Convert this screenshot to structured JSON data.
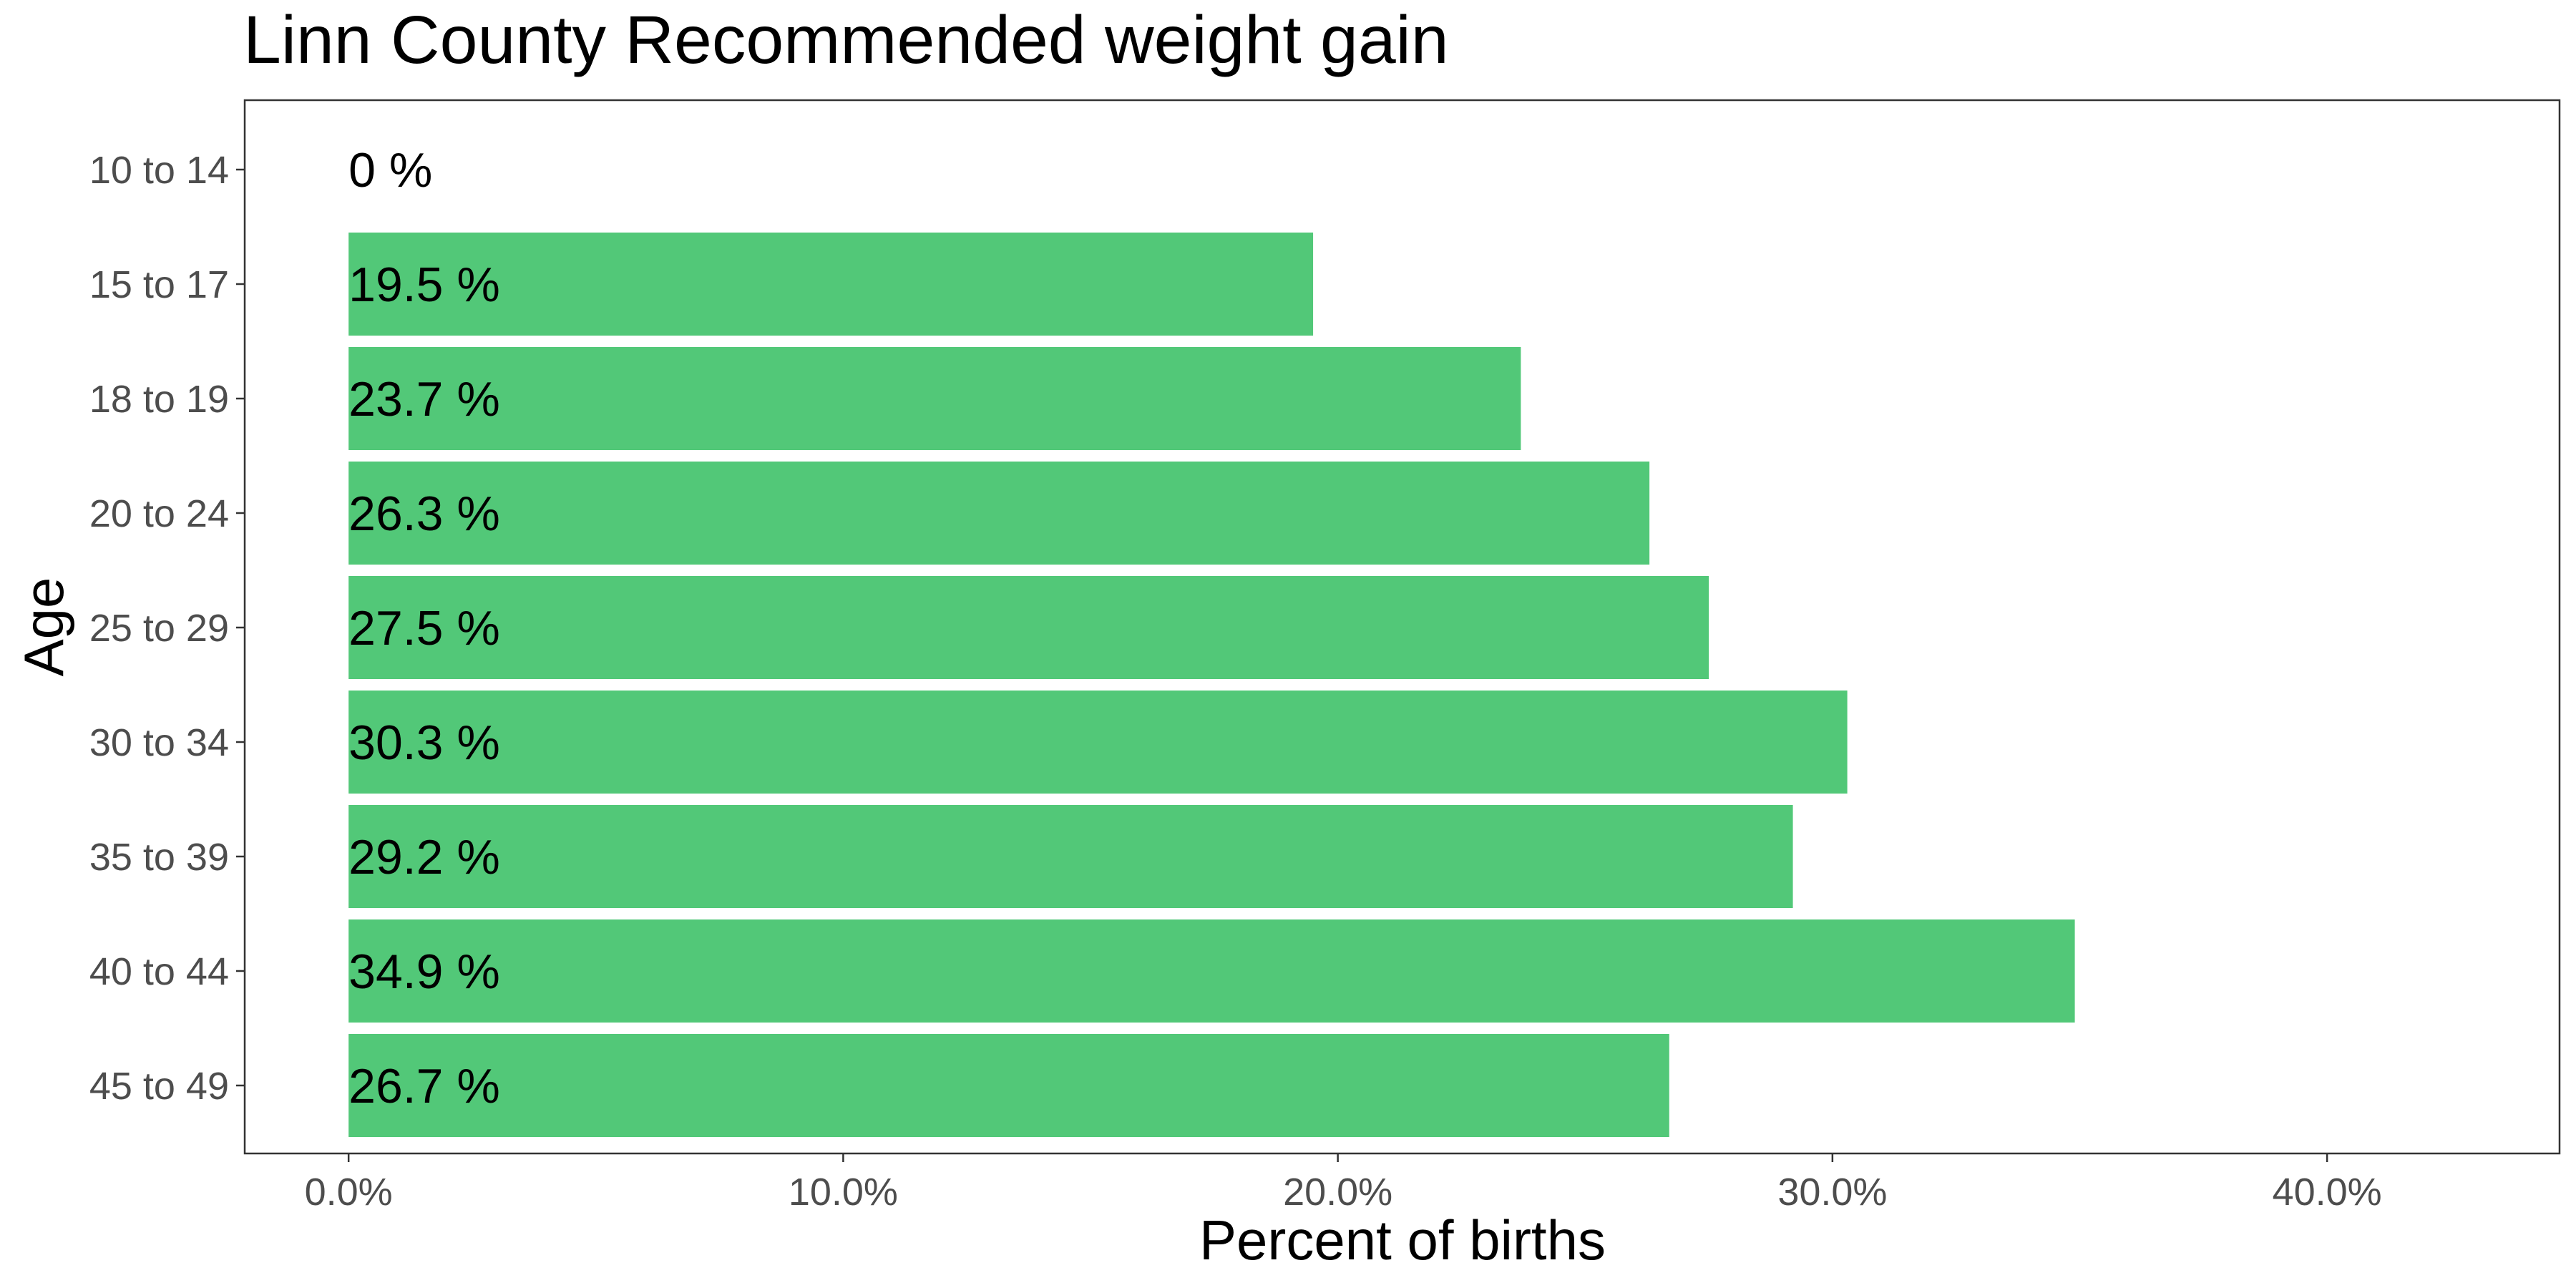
{
  "chart_data": {
    "type": "bar",
    "orientation": "horizontal",
    "title": "Linn County Recommended weight gain",
    "xlabel": "Percent of births",
    "ylabel": "Age",
    "categories": [
      "10 to 14",
      "15 to 17",
      "18 to 19",
      "20 to 24",
      "25 to 29",
      "30 to 34",
      "35 to 39",
      "40 to 44",
      "45 to 49"
    ],
    "values": [
      0,
      19.5,
      23.7,
      26.3,
      27.5,
      30.3,
      29.2,
      34.9,
      26.7
    ],
    "data_labels": [
      "0 %",
      "19.5 %",
      "23.7 %",
      "26.3 %",
      "27.5 %",
      "30.3 %",
      "29.2 %",
      "34.9 %",
      "26.7 %"
    ],
    "xticks": [
      0,
      10,
      20,
      30,
      40
    ],
    "xtick_labels": [
      "0.0%",
      "10.0%",
      "20.0%",
      "30.0%",
      "40.0%"
    ],
    "xlim": [
      -2.1,
      44.7
    ],
    "grid": false,
    "legend": "none",
    "colors": {
      "bar": "#52c878",
      "panel_border": "#333333",
      "tick_text": "#4d4d4d",
      "text": "#000000"
    }
  }
}
